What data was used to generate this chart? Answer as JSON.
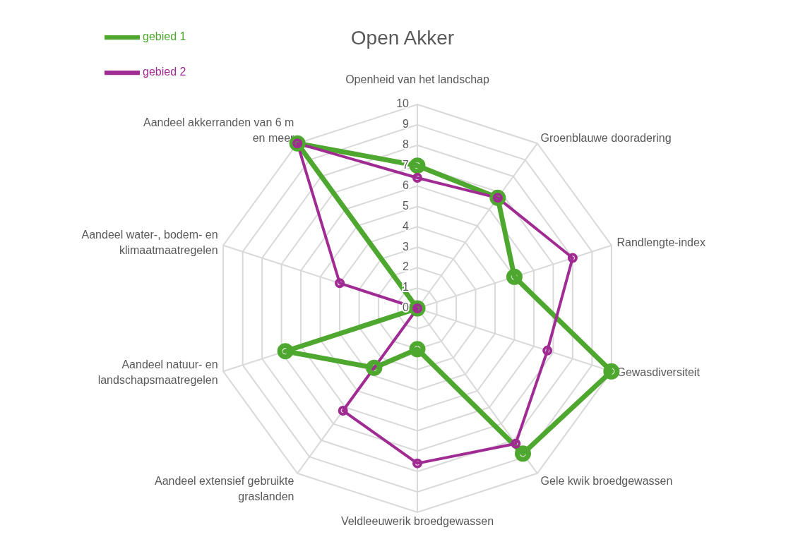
{
  "chart_data": {
    "type": "radar",
    "title": "Open Akker",
    "categories": [
      "Openheid van het landschap",
      "Groenblauwe dooradering",
      "Randlengte-index",
      "Gewasdiversiteit",
      "Gele kwik broedgewassen",
      "Veldleeuwerik broedgewassen",
      "Aandeel extensief gebruikte graslanden",
      "Aandeel natuur- en landschapsmaatregelen",
      "Aandeel water-, bodem- en klimaatmaatregelen",
      "Aandeel akkerranden van 6 m en meer"
    ],
    "series": [
      {
        "name": "gebied 1",
        "color": "#4ea72e",
        "values": [
          7,
          6.7,
          5,
          10,
          8.8,
          2,
          3.6,
          6.8,
          0,
          10
        ]
      },
      {
        "name": "gebied 2",
        "color": "#a02b93",
        "values": [
          6.4,
          6.7,
          8,
          6.7,
          8.2,
          7.6,
          6.2,
          0,
          4,
          10
        ]
      }
    ],
    "ylim": [
      0,
      10
    ],
    "yticks": [
      0,
      1,
      2,
      3,
      4,
      5,
      6,
      7,
      8,
      9,
      10
    ],
    "grid": true,
    "legend": "top left",
    "marker": "circle"
  }
}
